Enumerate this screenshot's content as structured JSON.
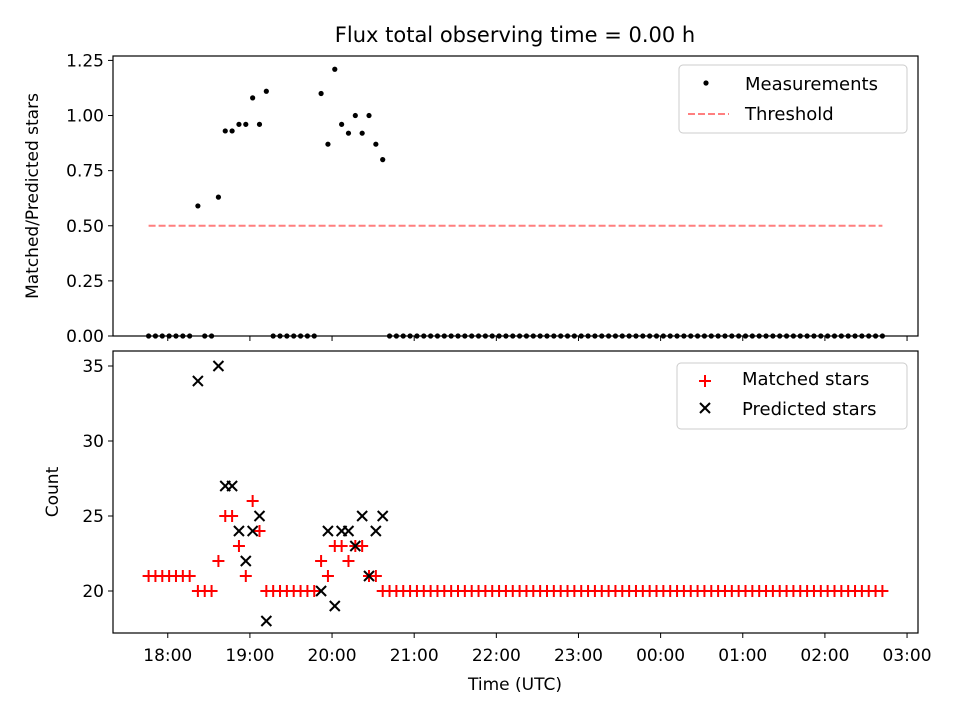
{
  "chart_data": [
    {
      "type": "scatter",
      "title": "Flux total observing time = 0.00 h",
      "xlabel": "",
      "ylabel": "Matched/Predicted stars",
      "xlim": [
        "17:20",
        "03:08"
      ],
      "ylim": [
        0.0,
        1.27
      ],
      "yticks": [
        "0.00",
        "0.25",
        "0.50",
        "0.75",
        "1.00",
        "1.25"
      ],
      "ytick_values": [
        0.0,
        0.25,
        0.5,
        0.75,
        1.0,
        1.25
      ],
      "xtick_values": [
        "18:00",
        "19:00",
        "20:00",
        "21:00",
        "22:00",
        "23:00",
        "00:00",
        "01:00",
        "02:00",
        "03:00"
      ],
      "legend_position": "top-right",
      "series": [
        {
          "name": "Measurements",
          "marker": "dot",
          "color": "#000000",
          "points": [
            [
              "17:46",
              0
            ],
            [
              "17:51",
              0
            ],
            [
              "17:56",
              0
            ],
            [
              "18:01",
              0
            ],
            [
              "18:06",
              0
            ],
            [
              "18:11",
              0
            ],
            [
              "18:16",
              0
            ],
            [
              "18:22",
              0.59
            ],
            [
              "18:27",
              0
            ],
            [
              "18:32",
              0
            ],
            [
              "18:37",
              0.63
            ],
            [
              "18:42",
              0.93
            ],
            [
              "18:47",
              0.93
            ],
            [
              "18:52",
              0.96
            ],
            [
              "18:57",
              0.96
            ],
            [
              "19:02",
              1.08
            ],
            [
              "19:07",
              0.96
            ],
            [
              "19:12",
              1.11
            ],
            [
              "19:17",
              0
            ],
            [
              "19:22",
              0
            ],
            [
              "19:27",
              0
            ],
            [
              "19:32",
              0
            ],
            [
              "19:37",
              0
            ],
            [
              "19:42",
              0
            ],
            [
              "19:47",
              0
            ],
            [
              "19:52",
              1.1
            ],
            [
              "19:57",
              0.87
            ],
            [
              "20:02",
              1.21
            ],
            [
              "20:07",
              0.96
            ],
            [
              "20:12",
              0.92
            ],
            [
              "20:17",
              1.0
            ],
            [
              "20:22",
              0.92
            ],
            [
              "20:27",
              1.0
            ],
            [
              "20:32",
              0.87
            ],
            [
              "20:37",
              0.8
            ],
            [
              "20:42",
              0
            ],
            [
              "20:47",
              0
            ],
            [
              "20:52",
              0
            ],
            [
              "20:57",
              0
            ],
            [
              "21:02",
              0
            ],
            [
              "21:07",
              0
            ],
            [
              "21:12",
              0
            ],
            [
              "21:17",
              0
            ],
            [
              "21:22",
              0
            ],
            [
              "21:27",
              0
            ],
            [
              "21:32",
              0
            ],
            [
              "21:37",
              0
            ],
            [
              "21:42",
              0
            ],
            [
              "21:47",
              0
            ],
            [
              "21:52",
              0
            ],
            [
              "21:57",
              0
            ],
            [
              "22:02",
              0
            ],
            [
              "22:07",
              0
            ],
            [
              "22:12",
              0
            ],
            [
              "22:17",
              0
            ],
            [
              "22:22",
              0
            ],
            [
              "22:27",
              0
            ],
            [
              "22:32",
              0
            ],
            [
              "22:37",
              0
            ],
            [
              "22:42",
              0
            ],
            [
              "22:47",
              0
            ],
            [
              "22:52",
              0
            ],
            [
              "22:57",
              0
            ],
            [
              "23:02",
              0
            ],
            [
              "23:07",
              0
            ],
            [
              "23:12",
              0
            ],
            [
              "23:17",
              0
            ],
            [
              "23:22",
              0
            ],
            [
              "23:27",
              0
            ],
            [
              "23:32",
              0
            ],
            [
              "23:37",
              0
            ],
            [
              "23:42",
              0
            ],
            [
              "23:47",
              0
            ],
            [
              "23:52",
              0
            ],
            [
              "23:57",
              0
            ],
            [
              "00:02",
              0
            ],
            [
              "00:07",
              0
            ],
            [
              "00:12",
              0
            ],
            [
              "00:17",
              0
            ],
            [
              "00:22",
              0
            ],
            [
              "00:27",
              0
            ],
            [
              "00:32",
              0
            ],
            [
              "00:37",
              0
            ],
            [
              "00:42",
              0
            ],
            [
              "00:47",
              0
            ],
            [
              "00:52",
              0
            ],
            [
              "00:57",
              0
            ],
            [
              "01:02",
              0
            ],
            [
              "01:07",
              0
            ],
            [
              "01:12",
              0
            ],
            [
              "01:17",
              0
            ],
            [
              "01:22",
              0
            ],
            [
              "01:27",
              0
            ],
            [
              "01:32",
              0
            ],
            [
              "01:37",
              0
            ],
            [
              "01:42",
              0
            ],
            [
              "01:47",
              0
            ],
            [
              "01:52",
              0
            ],
            [
              "01:57",
              0
            ],
            [
              "02:02",
              0
            ],
            [
              "02:07",
              0
            ],
            [
              "02:12",
              0
            ],
            [
              "02:17",
              0
            ],
            [
              "02:22",
              0
            ],
            [
              "02:27",
              0
            ],
            [
              "02:32",
              0
            ],
            [
              "02:37",
              0
            ],
            [
              "02:42",
              0
            ]
          ]
        },
        {
          "name": "Threshold",
          "marker": "dashed-line",
          "color": "#ff7f7f",
          "points": [
            [
              "17:46",
              0.5
            ],
            [
              "02:42",
              0.5
            ]
          ]
        }
      ]
    },
    {
      "type": "scatter",
      "title": "",
      "xlabel": "Time (UTC)",
      "ylabel": "Count",
      "xlim": [
        "17:20",
        "03:08"
      ],
      "ylim": [
        17.2,
        36.0
      ],
      "yticks": [
        "20",
        "25",
        "30",
        "35"
      ],
      "ytick_values": [
        20,
        25,
        30,
        35
      ],
      "xticks": [
        "18:00",
        "19:00",
        "20:00",
        "21:00",
        "22:00",
        "23:00",
        "00:00",
        "01:00",
        "02:00",
        "03:00"
      ],
      "xtick_values": [
        "18:00",
        "19:00",
        "20:00",
        "21:00",
        "22:00",
        "23:00",
        "00:00",
        "01:00",
        "02:00",
        "03:00"
      ],
      "legend_position": "top-right",
      "series": [
        {
          "name": "Matched stars",
          "marker": "plus",
          "color": "#ff0000",
          "points": [
            [
              "17:46",
              21
            ],
            [
              "17:51",
              21
            ],
            [
              "17:56",
              21
            ],
            [
              "18:01",
              21
            ],
            [
              "18:06",
              21
            ],
            [
              "18:11",
              21
            ],
            [
              "18:16",
              21
            ],
            [
              "18:22",
              20
            ],
            [
              "18:27",
              20
            ],
            [
              "18:32",
              20
            ],
            [
              "18:37",
              22
            ],
            [
              "18:42",
              25
            ],
            [
              "18:47",
              25
            ],
            [
              "18:52",
              23
            ],
            [
              "18:57",
              21
            ],
            [
              "19:02",
              26
            ],
            [
              "19:07",
              24
            ],
            [
              "19:12",
              20
            ],
            [
              "19:17",
              20
            ],
            [
              "19:22",
              20
            ],
            [
              "19:27",
              20
            ],
            [
              "19:32",
              20
            ],
            [
              "19:37",
              20
            ],
            [
              "19:42",
              20
            ],
            [
              "19:47",
              20
            ],
            [
              "19:52",
              22
            ],
            [
              "19:57",
              21
            ],
            [
              "20:02",
              23
            ],
            [
              "20:07",
              23
            ],
            [
              "20:12",
              22
            ],
            [
              "20:17",
              23
            ],
            [
              "20:22",
              23
            ],
            [
              "20:27",
              21
            ],
            [
              "20:32",
              21
            ],
            [
              "20:37",
              20
            ],
            [
              "20:42",
              20
            ],
            [
              "20:47",
              20
            ],
            [
              "20:52",
              20
            ],
            [
              "20:57",
              20
            ],
            [
              "21:02",
              20
            ],
            [
              "21:07",
              20
            ],
            [
              "21:12",
              20
            ],
            [
              "21:17",
              20
            ],
            [
              "21:22",
              20
            ],
            [
              "21:27",
              20
            ],
            [
              "21:32",
              20
            ],
            [
              "21:37",
              20
            ],
            [
              "21:42",
              20
            ],
            [
              "21:47",
              20
            ],
            [
              "21:52",
              20
            ],
            [
              "21:57",
              20
            ],
            [
              "22:02",
              20
            ],
            [
              "22:07",
              20
            ],
            [
              "22:12",
              20
            ],
            [
              "22:17",
              20
            ],
            [
              "22:22",
              20
            ],
            [
              "22:27",
              20
            ],
            [
              "22:32",
              20
            ],
            [
              "22:37",
              20
            ],
            [
              "22:42",
              20
            ],
            [
              "22:47",
              20
            ],
            [
              "22:52",
              20
            ],
            [
              "22:57",
              20
            ],
            [
              "23:02",
              20
            ],
            [
              "23:07",
              20
            ],
            [
              "23:12",
              20
            ],
            [
              "23:17",
              20
            ],
            [
              "23:22",
              20
            ],
            [
              "23:27",
              20
            ],
            [
              "23:32",
              20
            ],
            [
              "23:37",
              20
            ],
            [
              "23:42",
              20
            ],
            [
              "23:47",
              20
            ],
            [
              "23:52",
              20
            ],
            [
              "23:57",
              20
            ],
            [
              "00:02",
              20
            ],
            [
              "00:07",
              20
            ],
            [
              "00:12",
              20
            ],
            [
              "00:17",
              20
            ],
            [
              "00:22",
              20
            ],
            [
              "00:27",
              20
            ],
            [
              "00:32",
              20
            ],
            [
              "00:37",
              20
            ],
            [
              "00:42",
              20
            ],
            [
              "00:47",
              20
            ],
            [
              "00:52",
              20
            ],
            [
              "00:57",
              20
            ],
            [
              "01:02",
              20
            ],
            [
              "01:07",
              20
            ],
            [
              "01:12",
              20
            ],
            [
              "01:17",
              20
            ],
            [
              "01:22",
              20
            ],
            [
              "01:27",
              20
            ],
            [
              "01:32",
              20
            ],
            [
              "01:37",
              20
            ],
            [
              "01:42",
              20
            ],
            [
              "01:47",
              20
            ],
            [
              "01:52",
              20
            ],
            [
              "01:57",
              20
            ],
            [
              "02:02",
              20
            ],
            [
              "02:07",
              20
            ],
            [
              "02:12",
              20
            ],
            [
              "02:17",
              20
            ],
            [
              "02:22",
              20
            ],
            [
              "02:27",
              20
            ],
            [
              "02:32",
              20
            ],
            [
              "02:37",
              20
            ],
            [
              "02:42",
              20
            ]
          ]
        },
        {
          "name": "Predicted stars",
          "marker": "x",
          "color": "#000000",
          "points": [
            [
              "18:22",
              34
            ],
            [
              "18:37",
              35
            ],
            [
              "18:42",
              27
            ],
            [
              "18:47",
              27
            ],
            [
              "18:52",
              24
            ],
            [
              "18:57",
              22
            ],
            [
              "19:02",
              24
            ],
            [
              "19:07",
              25
            ],
            [
              "19:12",
              18
            ],
            [
              "19:52",
              20
            ],
            [
              "19:57",
              24
            ],
            [
              "20:02",
              19
            ],
            [
              "20:07",
              24
            ],
            [
              "20:12",
              24
            ],
            [
              "20:17",
              23
            ],
            [
              "20:22",
              25
            ],
            [
              "20:27",
              21
            ],
            [
              "20:32",
              24
            ],
            [
              "20:37",
              25
            ]
          ]
        }
      ]
    }
  ]
}
